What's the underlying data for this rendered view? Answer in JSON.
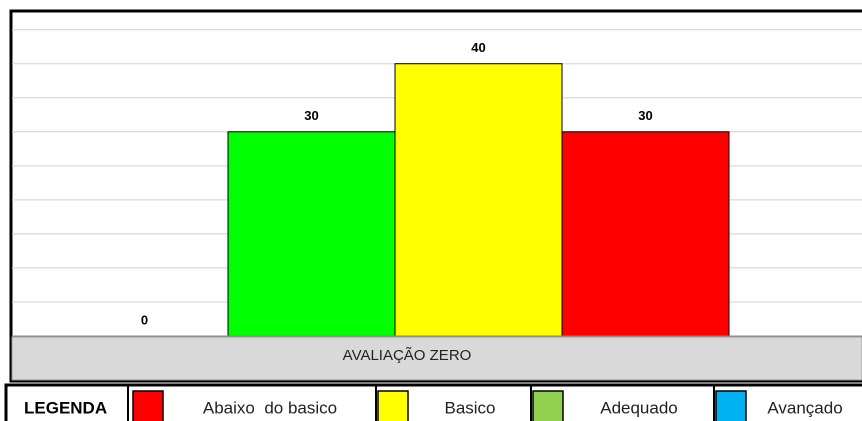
{
  "chart_data": {
    "type": "bar",
    "categories": [
      "AVALIAÇÃO ZERO"
    ],
    "series": [
      {
        "values": [
          0
        ]
      },
      {
        "color": "#00ff00",
        "values": [
          30
        ]
      },
      {
        "color": "#ffff00",
        "values": [
          40
        ]
      },
      {
        "color": "#ff0000",
        "values": [
          30
        ]
      }
    ],
    "ylim": [
      0,
      47.6
    ],
    "yticks": [
      0,
      5,
      10,
      15,
      20,
      25,
      30,
      35,
      40,
      45
    ],
    "grid": true
  },
  "legend": {
    "title": "LEGENDA",
    "items": [
      {
        "label": "Abaixo  do basico",
        "color": "#ff0000"
      },
      {
        "label": "Basico",
        "color": "#ffff00"
      },
      {
        "label": "Adequado",
        "color": "#92d050"
      },
      {
        "label": "Avançado",
        "color": "#00b0f0"
      }
    ]
  }
}
